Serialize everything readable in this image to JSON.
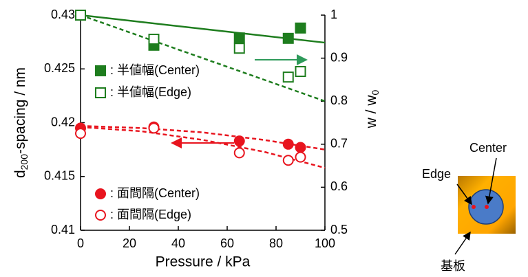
{
  "chart_data": {
    "type": "scatter",
    "x_label": "Pressure / kPa",
    "y_label_parts": [
      "d",
      "200",
      "-spacing / nm"
    ],
    "y2_label_parts": [
      "w / w",
      "0"
    ],
    "xlim": [
      0,
      100
    ],
    "xticks": [
      0,
      20,
      40,
      60,
      80,
      100
    ],
    "ylim": [
      0.41,
      0.43
    ],
    "yticks": [
      0.41,
      0.415,
      0.42,
      0.425,
      0.43
    ],
    "y2lim": [
      0.5,
      1
    ],
    "y2ticks": [
      0.5,
      0.6,
      0.7,
      0.8,
      0.9,
      1
    ],
    "series": [
      {
        "name": ": 半値幅(Center)",
        "color": "#1e7d1e",
        "marker": "square",
        "filled": true,
        "axis": "y2",
        "x": [
          0,
          30,
          65,
          85,
          90
        ],
        "values": [
          1.0,
          0.93,
          0.947,
          0.946,
          0.97
        ]
      },
      {
        "name": ": 半値幅(Edge)",
        "color": "#1e7d1e",
        "marker": "square",
        "filled": false,
        "axis": "y2",
        "x": [
          0,
          30,
          65,
          85,
          90
        ],
        "values": [
          1.0,
          0.944,
          0.923,
          0.856,
          0.869
        ]
      },
      {
        "name": ": 面間隔(Center)",
        "color": "#e8141e",
        "marker": "circle",
        "filled": true,
        "axis": "y",
        "x": [
          0,
          30,
          65,
          85,
          90
        ],
        "values": [
          0.4195,
          0.4196,
          0.4183,
          0.418,
          0.4177
        ]
      },
      {
        "name": ": 面間隔(Edge)",
        "color": "#e8141e",
        "marker": "circle",
        "filled": false,
        "axis": "y",
        "x": [
          0,
          30,
          65,
          85,
          90
        ],
        "values": [
          0.419,
          0.4195,
          0.4172,
          0.4165,
          0.4168
        ]
      }
    ],
    "fits": [
      {
        "color": "#1e7d1e",
        "dashed": false,
        "axis": "y2",
        "x": [
          0,
          100
        ],
        "values": [
          1.0,
          0.936
        ]
      },
      {
        "color": "#1e7d1e",
        "dashed": true,
        "axis": "y2",
        "x": [
          0,
          100
        ],
        "values": [
          1.0,
          0.8
        ]
      },
      {
        "color": "#e8141e",
        "dashed": true,
        "axis": "y",
        "x": [
          0,
          25,
          50,
          75,
          100
        ],
        "values": [
          0.4197,
          0.4195,
          0.4191,
          0.4184,
          0.4175
        ]
      },
      {
        "color": "#e8141e",
        "dashed": true,
        "axis": "y",
        "x": [
          0,
          25,
          50,
          75,
          100
        ],
        "values": [
          0.4196,
          0.4192,
          0.4184,
          0.4173,
          0.4158
        ]
      }
    ]
  },
  "inset": {
    "center_label": "Center",
    "edge_label": "Edge",
    "substrate_label": "基板"
  }
}
